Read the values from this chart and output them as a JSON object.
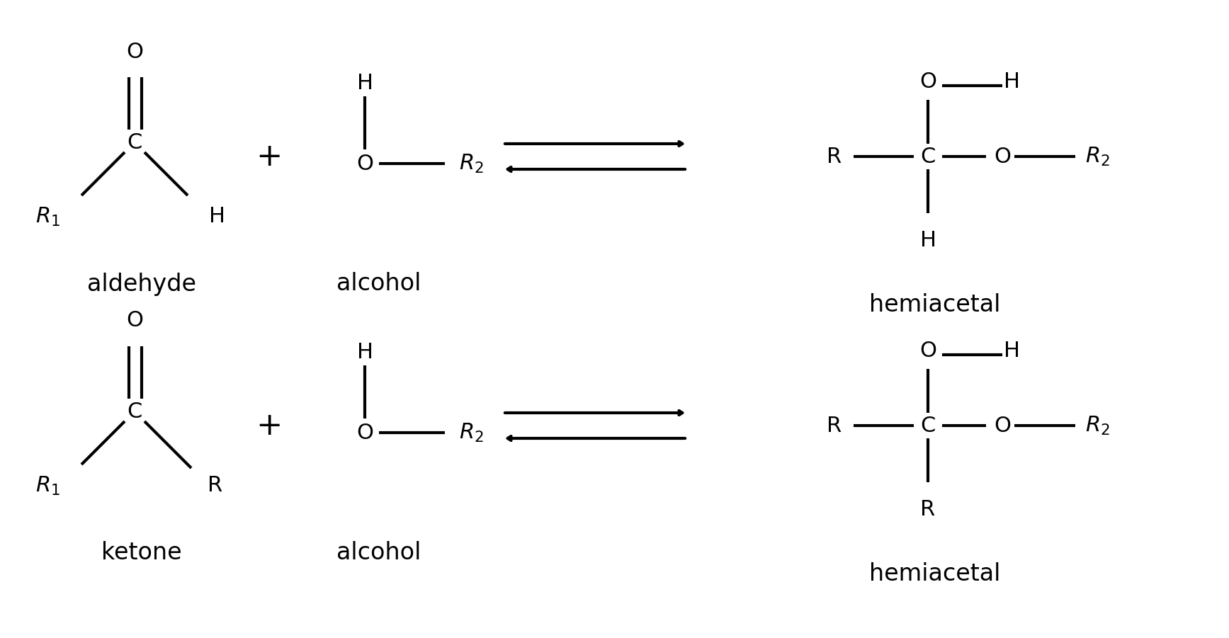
{
  "bg_color": "#ffffff",
  "line_color": "#000000",
  "text_color": "#000000",
  "lw": 3.0,
  "font_size": 22,
  "label_font_size": 24,
  "figsize": [
    17.35,
    9.01
  ],
  "dpi": 100,
  "xlim": [
    0,
    17.35
  ],
  "ylim": [
    0,
    9.01
  ]
}
